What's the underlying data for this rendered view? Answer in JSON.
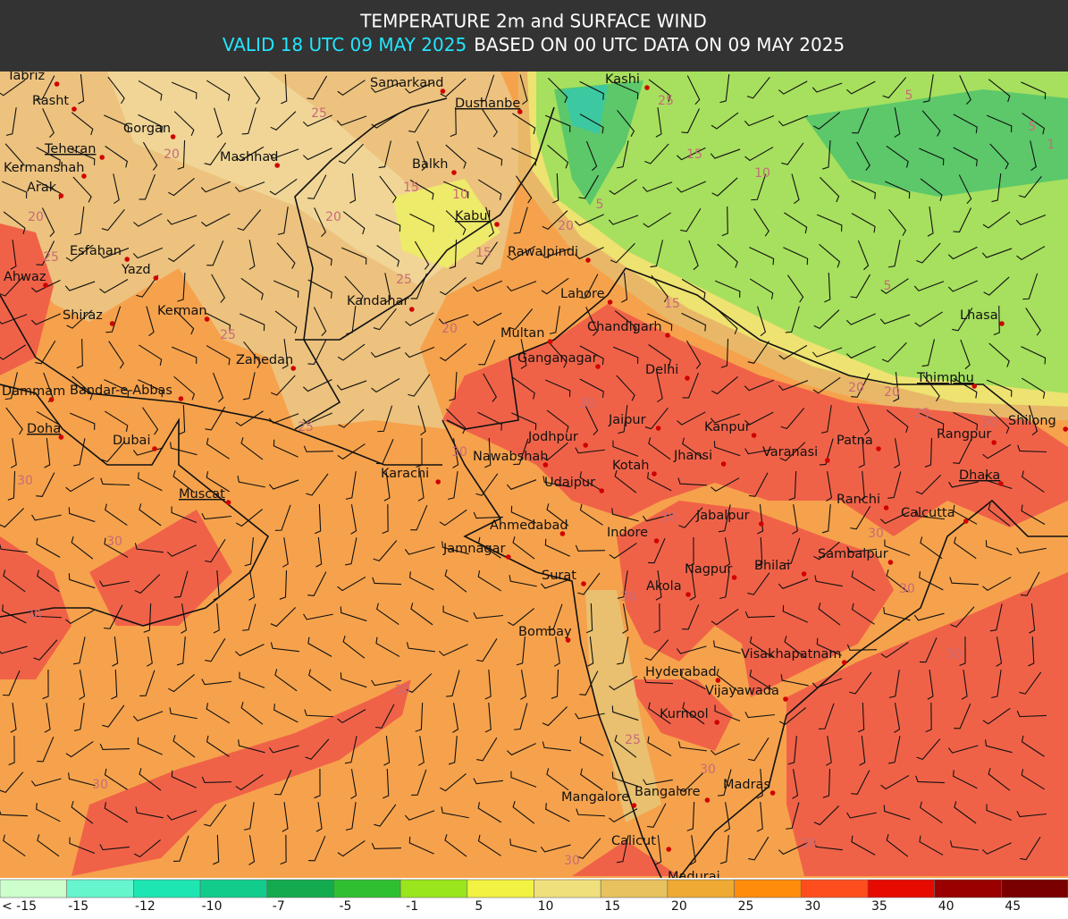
{
  "header": {
    "title": "TEMPERATURE 2m and SURFACE WIND",
    "valid": "VALID 18 UTC 09 MAY 2025",
    "based": "BASED ON 00 UTC DATA ON 09 MAY 2025"
  },
  "map": {
    "cities": [
      {
        "name": "Tabriz"
      },
      {
        "name": "Rasht"
      },
      {
        "name": "Gorgan"
      },
      {
        "name": "Teheran",
        "capital": true
      },
      {
        "name": "Mashhad"
      },
      {
        "name": "Kermanshah"
      },
      {
        "name": "Arak"
      },
      {
        "name": "Esfahan"
      },
      {
        "name": "Yazd"
      },
      {
        "name": "Ahwaz"
      },
      {
        "name": "Shiraz"
      },
      {
        "name": "Kerman"
      },
      {
        "name": "Zahedan"
      },
      {
        "name": "Dammam"
      },
      {
        "name": "Bandar-e-Abbas"
      },
      {
        "name": "Doha",
        "capital": true
      },
      {
        "name": "Dubai"
      },
      {
        "name": "Muscat",
        "capital": true
      },
      {
        "name": "Samarkand"
      },
      {
        "name": "Dushanbe",
        "capital": true
      },
      {
        "name": "Balkh"
      },
      {
        "name": "Kabul",
        "capital": true
      },
      {
        "name": "Kashi"
      },
      {
        "name": "Rawalpindi"
      },
      {
        "name": "Kandahar"
      },
      {
        "name": "Lahore"
      },
      {
        "name": "Multan"
      },
      {
        "name": "Chandigarh"
      },
      {
        "name": "Ganganagar"
      },
      {
        "name": "Delhi"
      },
      {
        "name": "Jaipur"
      },
      {
        "name": "Kanpur"
      },
      {
        "name": "Jodhpur"
      },
      {
        "name": "Nawabshah"
      },
      {
        "name": "Jhansi"
      },
      {
        "name": "Varanasi"
      },
      {
        "name": "Patna"
      },
      {
        "name": "Rangpur"
      },
      {
        "name": "Shilong"
      },
      {
        "name": "Lhasa"
      },
      {
        "name": "Thimphu",
        "capital": true
      },
      {
        "name": "Karachi"
      },
      {
        "name": "Udaipur"
      },
      {
        "name": "Kotah"
      },
      {
        "name": "Dhaka",
        "capital": true
      },
      {
        "name": "Ranchi"
      },
      {
        "name": "Calcutta"
      },
      {
        "name": "Jabalpur"
      },
      {
        "name": "Ahmedabad"
      },
      {
        "name": "Jamnagar"
      },
      {
        "name": "Indore"
      },
      {
        "name": "Sambalpur"
      },
      {
        "name": "Surat"
      },
      {
        "name": "Nagpur"
      },
      {
        "name": "Bhilai"
      },
      {
        "name": "Akola"
      },
      {
        "name": "Bombay"
      },
      {
        "name": "Visakhapatnam"
      },
      {
        "name": "Hyderabad"
      },
      {
        "name": "Vijayawada"
      },
      {
        "name": "Kurnool"
      },
      {
        "name": "Madras"
      },
      {
        "name": "Bangalore"
      },
      {
        "name": "Mangalore"
      },
      {
        "name": "Calicut"
      },
      {
        "name": "Madurai"
      }
    ],
    "contour_labels": [
      "25",
      "20",
      "20",
      "25",
      "25",
      "25",
      "20",
      "15",
      "10",
      "15",
      "20",
      "25",
      "20",
      "30",
      "30",
      "30",
      "30",
      "30",
      "30",
      "30",
      "25",
      "30",
      "30",
      "30",
      "30",
      "30",
      "30",
      "30",
      "30",
      "15",
      "25",
      "15",
      "10",
      "5",
      "5",
      "5",
      "1",
      "5",
      "20",
      "20",
      "25",
      "20"
    ]
  },
  "legend": [
    {
      "label": "< -15",
      "color": "#ccffcc"
    },
    {
      "label": "-15",
      "color": "#66f5cc"
    },
    {
      "label": "-12",
      "color": "#1ee6b2"
    },
    {
      "label": "-10",
      "color": "#12cc8c"
    },
    {
      "label": "-7",
      "color": "#14aa4e"
    },
    {
      "label": "-5",
      "color": "#30bf30"
    },
    {
      "label": "-1",
      "color": "#9ae61c"
    },
    {
      "label": "5",
      "color": "#f2f242"
    },
    {
      "label": "10",
      "color": "#f0e07c"
    },
    {
      "label": "15",
      "color": "#e8c25e"
    },
    {
      "label": "20",
      "color": "#eeaa32"
    },
    {
      "label": "25",
      "color": "#ff8c0a"
    },
    {
      "label": "30",
      "color": "#ff4e1e"
    },
    {
      "label": "35",
      "color": "#e60a00"
    },
    {
      "label": "40",
      "color": "#9a0000"
    },
    {
      "label": "45",
      "color": "#7a0000"
    }
  ]
}
